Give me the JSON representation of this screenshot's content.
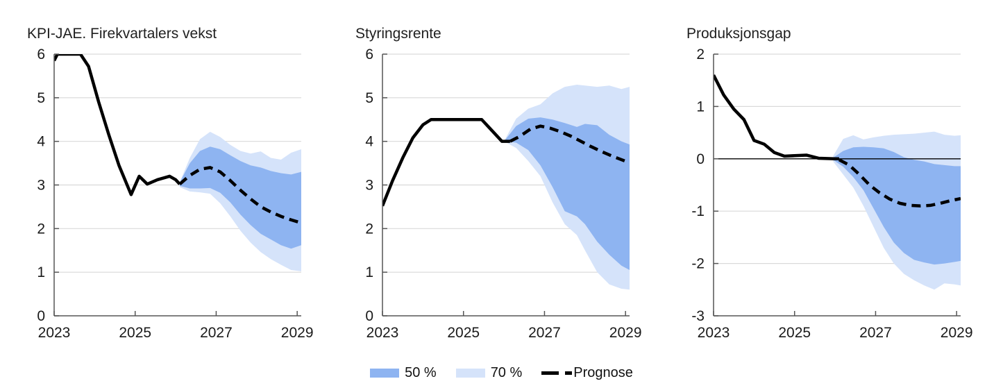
{
  "legend": {
    "band50_label": "50 %",
    "band70_label": "70 %",
    "prognose_label": "Prognose"
  },
  "colors": {
    "band50": "#8EB4F1",
    "band70": "#D5E3FA",
    "line": "#000000",
    "grid": "#D9D9D9",
    "axis": "#555555",
    "zero_line": "#000000",
    "text": "#1A1A1A"
  },
  "chart_data": [
    {
      "type": "line",
      "title": "KPI-JAE. Firekvartalers vekst",
      "ylim": [
        0,
        6
      ],
      "yticks": [
        0,
        1,
        2,
        3,
        4,
        5,
        6
      ],
      "xlim": [
        2023,
        2029.1
      ],
      "xticks": [
        2023,
        2025,
        2027,
        2029
      ],
      "zero_baseline": false,
      "history": {
        "x": [
          2023.0,
          2023.08,
          2023.3,
          2023.65,
          2023.85,
          2024.1,
          2024.35,
          2024.6,
          2024.9,
          2025.1,
          2025.3,
          2025.55,
          2025.85,
          2026.0,
          2026.1
        ],
        "y": [
          5.85,
          6.0,
          6.0,
          6.0,
          5.72,
          4.9,
          4.15,
          3.45,
          2.78,
          3.2,
          3.02,
          3.12,
          3.2,
          3.12,
          3.02
        ]
      },
      "forecast": {
        "x": [
          2026.1,
          2026.35,
          2026.6,
          2026.85,
          2027.1,
          2027.35,
          2027.6,
          2027.85,
          2028.1,
          2028.35,
          2028.6,
          2028.85,
          2029.1
        ],
        "y": [
          3.02,
          3.22,
          3.36,
          3.4,
          3.3,
          3.1,
          2.88,
          2.68,
          2.5,
          2.38,
          2.28,
          2.2,
          2.13
        ]
      },
      "band50": {
        "x": [
          2026.1,
          2026.35,
          2026.6,
          2026.85,
          2027.1,
          2027.35,
          2027.6,
          2027.85,
          2028.1,
          2028.35,
          2028.6,
          2028.85,
          2029.1
        ],
        "upper": [
          3.06,
          3.5,
          3.78,
          3.88,
          3.82,
          3.68,
          3.55,
          3.45,
          3.4,
          3.32,
          3.27,
          3.24,
          3.3
        ],
        "lower": [
          2.98,
          2.92,
          2.92,
          2.93,
          2.82,
          2.6,
          2.32,
          2.08,
          1.88,
          1.75,
          1.62,
          1.54,
          1.62
        ]
      },
      "band70": {
        "x": [
          2026.1,
          2026.35,
          2026.6,
          2026.85,
          2027.1,
          2027.35,
          2027.6,
          2027.85,
          2028.1,
          2028.35,
          2028.6,
          2028.85,
          2029.1
        ],
        "upper": [
          3.06,
          3.62,
          4.05,
          4.22,
          4.1,
          3.92,
          3.78,
          3.72,
          3.77,
          3.62,
          3.58,
          3.74,
          3.82
        ],
        "lower": [
          2.95,
          2.85,
          2.83,
          2.8,
          2.58,
          2.28,
          1.95,
          1.68,
          1.46,
          1.3,
          1.17,
          1.05,
          1.02
        ]
      }
    },
    {
      "type": "line",
      "title": "Styringsrente",
      "ylim": [
        0,
        6
      ],
      "yticks": [
        0,
        1,
        2,
        3,
        4,
        5,
        6
      ],
      "xlim": [
        2023,
        2029.1
      ],
      "xticks": [
        2023,
        2025,
        2027,
        2029
      ],
      "zero_baseline": false,
      "history": {
        "x": [
          2023.0,
          2023.25,
          2023.5,
          2023.75,
          2024.0,
          2024.2,
          2025.45,
          2025.7,
          2025.95,
          2026.15
        ],
        "y": [
          2.52,
          3.1,
          3.62,
          4.08,
          4.38,
          4.5,
          4.5,
          4.25,
          4.0,
          4.0
        ]
      },
      "forecast": {
        "x": [
          2026.15,
          2026.4,
          2026.65,
          2026.9,
          2027.15,
          2027.4,
          2027.65,
          2027.9,
          2028.15,
          2028.4,
          2028.65,
          2028.9,
          2029.1
        ],
        "y": [
          4.0,
          4.12,
          4.28,
          4.35,
          4.3,
          4.22,
          4.12,
          4.0,
          3.88,
          3.77,
          3.67,
          3.58,
          3.51
        ]
      },
      "band50": {
        "x": [
          2026.0,
          2026.3,
          2026.6,
          2026.9,
          2027.2,
          2027.5,
          2027.8,
          2028.0,
          2028.3,
          2028.6,
          2028.9,
          2029.1
        ],
        "upper": [
          4.0,
          4.35,
          4.52,
          4.55,
          4.5,
          4.42,
          4.33,
          4.4,
          4.37,
          4.15,
          4.0,
          3.93
        ],
        "lower": [
          4.0,
          3.97,
          3.8,
          3.45,
          2.95,
          2.4,
          2.28,
          2.1,
          1.7,
          1.4,
          1.15,
          1.05
        ]
      },
      "band70": {
        "x": [
          2026.0,
          2026.3,
          2026.6,
          2026.9,
          2027.2,
          2027.5,
          2027.8,
          2028.0,
          2028.3,
          2028.6,
          2028.9,
          2029.1
        ],
        "upper": [
          4.0,
          4.52,
          4.75,
          4.85,
          5.1,
          5.25,
          5.3,
          5.28,
          5.25,
          5.28,
          5.2,
          5.25
        ],
        "lower": [
          4.0,
          3.85,
          3.55,
          3.2,
          2.6,
          2.1,
          1.85,
          1.5,
          1.0,
          0.72,
          0.62,
          0.6
        ]
      }
    },
    {
      "type": "line",
      "title": "Produksjonsgap",
      "ylim": [
        -3,
        2
      ],
      "yticks": [
        -3,
        -2,
        -1,
        0,
        1,
        2
      ],
      "xlim": [
        2023,
        2029.1
      ],
      "xticks": [
        2023,
        2025,
        2027,
        2029
      ],
      "zero_baseline": true,
      "history": {
        "x": [
          2023.0,
          2023.25,
          2023.5,
          2023.75,
          2024.0,
          2024.25,
          2024.5,
          2024.75,
          2025.0,
          2025.3,
          2025.6,
          2026.0,
          2026.1
        ],
        "y": [
          1.6,
          1.22,
          0.95,
          0.75,
          0.35,
          0.28,
          0.12,
          0.05,
          0.06,
          0.07,
          0.01,
          0.0,
          0.0
        ]
      },
      "forecast": {
        "x": [
          2026.1,
          2026.35,
          2026.6,
          2026.85,
          2027.1,
          2027.35,
          2027.6,
          2027.85,
          2028.1,
          2028.35,
          2028.6,
          2028.85,
          2029.1
        ],
        "y": [
          -0.02,
          -0.12,
          -0.3,
          -0.5,
          -0.65,
          -0.77,
          -0.85,
          -0.89,
          -0.9,
          -0.89,
          -0.85,
          -0.8,
          -0.76
        ]
      },
      "band50": {
        "x": [
          2025.95,
          2026.2,
          2026.45,
          2026.7,
          2026.95,
          2027.2,
          2027.45,
          2027.7,
          2027.95,
          2028.2,
          2028.45,
          2028.7,
          2028.95,
          2029.1
        ],
        "upper": [
          0.02,
          0.15,
          0.22,
          0.23,
          0.22,
          0.2,
          0.13,
          0.03,
          -0.02,
          -0.05,
          -0.1,
          -0.12,
          -0.14,
          -0.14
        ],
        "lower": [
          -0.02,
          -0.15,
          -0.35,
          -0.6,
          -0.95,
          -1.3,
          -1.6,
          -1.8,
          -1.93,
          -1.98,
          -2.02,
          -2.0,
          -1.97,
          -1.95
        ]
      },
      "band70": {
        "x": [
          2025.95,
          2026.2,
          2026.45,
          2026.7,
          2026.95,
          2027.2,
          2027.45,
          2027.7,
          2027.95,
          2028.2,
          2028.45,
          2028.7,
          2028.95,
          2029.1
        ],
        "upper": [
          0.05,
          0.38,
          0.45,
          0.37,
          0.41,
          0.44,
          0.46,
          0.47,
          0.48,
          0.5,
          0.52,
          0.46,
          0.44,
          0.45
        ],
        "lower": [
          -0.05,
          -0.3,
          -0.55,
          -0.9,
          -1.3,
          -1.7,
          -2.0,
          -2.2,
          -2.32,
          -2.42,
          -2.5,
          -2.38,
          -2.4,
          -2.42
        ]
      }
    }
  ]
}
